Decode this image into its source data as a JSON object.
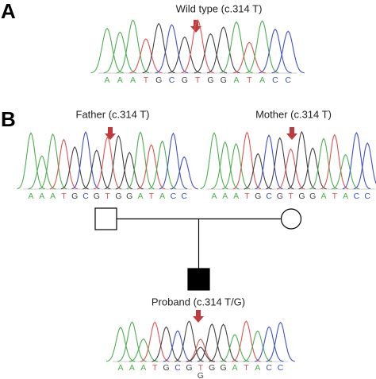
{
  "panels": [
    "A",
    "B"
  ],
  "base_colors": {
    "A": "#4caf50",
    "T": "#e0534f",
    "G": "#444444",
    "C": "#3f51c9"
  },
  "arrow_color": "#c0393b",
  "chromatograms": [
    {
      "title": "Wild type (c.314 T)",
      "bases": [
        "A",
        "A",
        "A",
        "T",
        "G",
        "C",
        "G",
        "T",
        "G",
        "G",
        "A",
        "T",
        "A",
        "C",
        "C"
      ]
    },
    {
      "title": "Father (c.314 T)",
      "bases": [
        "A",
        "A",
        "A",
        "T",
        "G",
        "C",
        "G",
        "T",
        "G",
        "G",
        "A",
        "T",
        "A",
        "C",
        "C"
      ]
    },
    {
      "title": "Mother (c.314 T)",
      "bases": [
        "A",
        "A",
        "A",
        "T",
        "G",
        "C",
        "G",
        "T",
        "G",
        "G",
        "A",
        "T",
        "A",
        "C",
        "C"
      ]
    },
    {
      "title": "Proband (c.314 T/G)",
      "bases": [
        "A",
        "A",
        "A",
        "T",
        "G",
        "C",
        "G",
        {
          "top": "T",
          "bottom": "G"
        },
        "G",
        "G",
        "A",
        "T",
        "A",
        "C",
        "C"
      ]
    }
  ]
}
